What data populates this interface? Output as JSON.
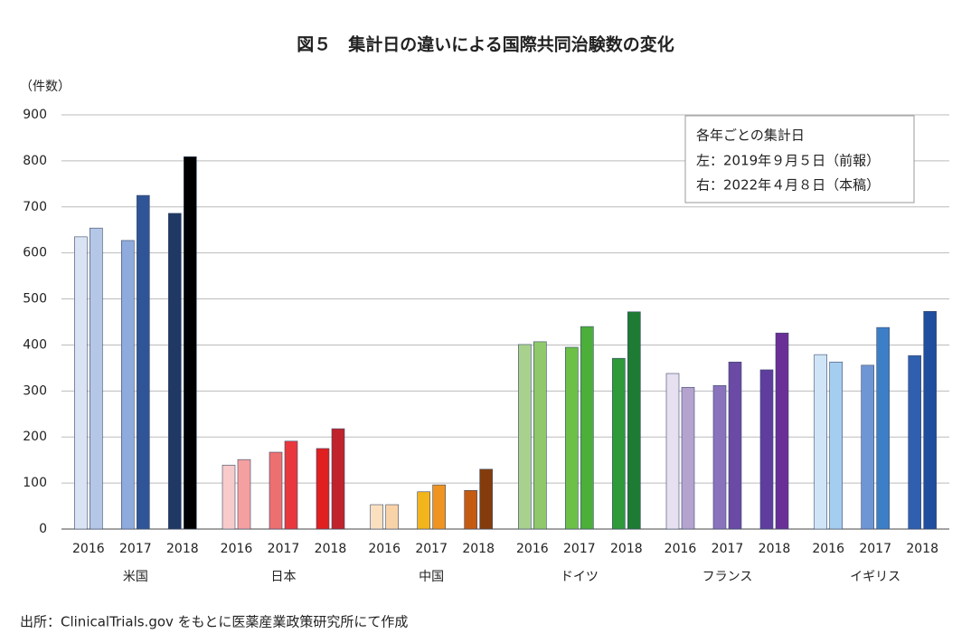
{
  "chart_data": {
    "type": "grouped-bar",
    "title": "図５　集計日の違いによる国際共同治験数の変化",
    "y_label": "（件数）",
    "source": "出所：ClinicalTrials.gov をもとに医薬産業政策研究所にて作成",
    "legend": {
      "title": "各年ごとの集計日",
      "items": [
        "左：2019年９月５日（前報）",
        "右：2022年４月８日（本稿）"
      ]
    },
    "ylim": [
      0,
      900
    ],
    "yticks": [
      0,
      100,
      200,
      300,
      400,
      500,
      600,
      700,
      800,
      900
    ],
    "grid": true,
    "groups": [
      {
        "name": "米国",
        "categories": [
          "2016",
          "2017",
          "2018"
        ],
        "series": [
          {
            "values": [
              635,
              627,
              686
            ],
            "colors": [
              "#dae3f3",
              "#8faadc",
              "#1f3864"
            ]
          },
          {
            "values": [
              654,
              725,
              809
            ],
            "colors": [
              "#b4c7e7",
              "#2f5597",
              "#000000"
            ]
          }
        ]
      },
      {
        "name": "日本",
        "categories": [
          "2016",
          "2017",
          "2018"
        ],
        "series": [
          {
            "values": [
              139,
              167,
              175
            ],
            "colors": [
              "#f8cbcb",
              "#ed7070",
              "#e02020"
            ]
          },
          {
            "values": [
              151,
              191,
              218
            ],
            "colors": [
              "#f4a0a0",
              "#e8383d",
              "#c0232b"
            ]
          }
        ]
      },
      {
        "name": "中国",
        "categories": [
          "2016",
          "2017",
          "2018"
        ],
        "series": [
          {
            "values": [
              53,
              81,
              84
            ],
            "colors": [
              "#fbe0c0",
              "#f2b51c",
              "#c55a11"
            ]
          },
          {
            "values": [
              53,
              96,
              130
            ],
            "colors": [
              "#f9d3a8",
              "#ef9420",
              "#843c0c"
            ]
          }
        ]
      },
      {
        "name": "ドイツ",
        "categories": [
          "2016",
          "2017",
          "2018"
        ],
        "series": [
          {
            "values": [
              401,
              395,
              371
            ],
            "colors": [
              "#a9d18e",
              "#6cbf47",
              "#2e9a3a"
            ]
          },
          {
            "values": [
              407,
              440,
              472
            ],
            "colors": [
              "#8fc96b",
              "#4caf3a",
              "#1e7b34"
            ]
          }
        ]
      },
      {
        "name": "フランス",
        "categories": [
          "2016",
          "2017",
          "2018"
        ],
        "series": [
          {
            "values": [
              338,
              312,
              346
            ],
            "colors": [
              "#e6e0f0",
              "#8a73bd",
              "#5f3d9e"
            ]
          },
          {
            "values": [
              308,
              363,
              426
            ],
            "colors": [
              "#b4a3cf",
              "#6a4aa5",
              "#6a2f96"
            ]
          }
        ]
      },
      {
        "name": "イギリス",
        "categories": [
          "2016",
          "2017",
          "2018"
        ],
        "series": [
          {
            "values": [
              379,
              356,
              377
            ],
            "colors": [
              "#cfe5f7",
              "#6f96d4",
              "#2f5fae"
            ]
          },
          {
            "values": [
              363,
              438,
              473
            ],
            "colors": [
              "#a5cdef",
              "#3d7fc6",
              "#1f4e9e"
            ]
          }
        ]
      }
    ]
  }
}
